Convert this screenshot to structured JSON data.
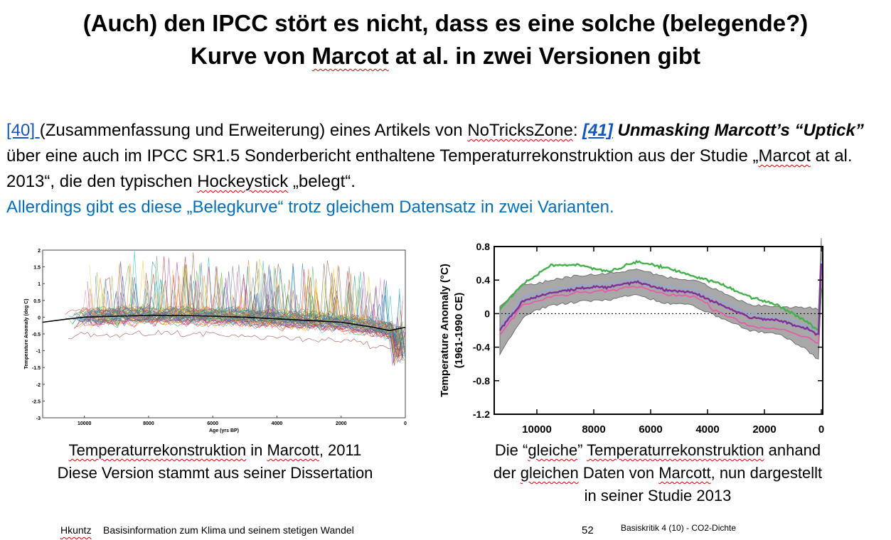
{
  "slide": {
    "title_pre": "(Auch) den IPCC stört es nicht, dass es eine solche (belegende?)",
    "title_line2_a": "Kurve von ",
    "title_line2_b": "Marcot",
    "title_line2_c": " at al. in zwei Versionen gibt",
    "para": {
      "ref40": "[40] ",
      "t1": "(Zusammenfassung und Erweiterung) eines Artikels von ",
      "notricks": "NoTricksZone",
      "t2": ": ",
      "ref41": "[41]",
      "t3": " Unmasking Marcott’s “Uptick”",
      "t4": " über eine auch im IPCC SR1.5 Sonderbericht enthaltene Temperaturrekonstruktion aus der Studie „",
      "marcot": "Marcot",
      "t5": " at al. 2013“, die den typischen ",
      "hockey": "Hockeystick",
      "t6": " „belegt“.",
      "blue_line": "Allerdings gibt es diese „Belegkurve“ trotz gleichem Datensatz in zwei Varianten."
    },
    "caption_left": {
      "l1a": "Temperaturrekonstruktion",
      "l1b": " in ",
      "l1c": "Marcott",
      "l1d": ", 2011",
      "l2": "Diese Version stammt aus seiner Dissertation"
    },
    "caption_right": {
      "l1a": "Die “",
      "l1b": "gleiche",
      "l1c": "” ",
      "l1d": "Temperaturrekonstruktion",
      "l1e": " anhand",
      "l2a": "der ",
      "l2b": "gleichen",
      "l2c": " Daten von  ",
      "l2d": "Marcott",
      "l2e": ", nun dargestellt",
      "l3": "in seiner Studie 2013"
    },
    "footer": {
      "author": "Hkuntz",
      "subtitle": "Basisinformation zum Klima und seinem stetigen Wandel",
      "page": "52",
      "section": "Basiskritik 4 (10) - CO2-Dichte"
    }
  },
  "chart_data": [
    {
      "type": "line",
      "title": "",
      "xlabel": "Age (yrs BP)",
      "ylabel": "Temperature Anomaly (deg C)",
      "xlim": [
        11300,
        0
      ],
      "ylim": [
        -3,
        2
      ],
      "xticks": [
        "10000",
        "8000",
        "6000",
        "4000",
        "2000",
        "0"
      ],
      "yticks": [
        "2",
        "1.5",
        "1",
        "0.5",
        "0",
        "-0.5",
        "-1",
        "-1.5",
        "-2",
        "-2.5",
        "-3"
      ],
      "series": [
        {
          "color": "#000000",
          "x": [
            11300,
            10500,
            10000,
            9000,
            8000,
            7000,
            6000,
            5000,
            4000,
            3000,
            2000,
            1000,
            500,
            0
          ],
          "y": [
            -0.15,
            -0.05,
            0.0,
            0.03,
            0.05,
            0.05,
            0.03,
            0.0,
            -0.05,
            -0.1,
            -0.15,
            -0.3,
            -0.4,
            -0.3
          ]
        }
      ]
    },
    {
      "type": "line",
      "title": "",
      "xlabel": "",
      "ylabel_1": "Temperature Anomaly (°C)",
      "ylabel_2": "(1961-1990 CE)",
      "xlim": [
        11500,
        -50
      ],
      "ylim": [
        -1.2,
        0.8
      ],
      "xticks": [
        "10000",
        "8000",
        "6000",
        "4000",
        "2000",
        "0"
      ],
      "yticks": [
        "0.8",
        "0.4",
        "0",
        "-0.4",
        "-0.8",
        "-1.2"
      ],
      "series": [
        {
          "color": "#43b04a",
          "x": [
            11300,
            10500,
            9500,
            8500,
            7500,
            6500,
            5500,
            4500,
            3500,
            2500,
            1500,
            500,
            100,
            0
          ],
          "y": [
            0.05,
            0.35,
            0.58,
            0.58,
            0.5,
            0.62,
            0.55,
            0.45,
            0.35,
            0.2,
            0.1,
            -0.1,
            -0.2,
            0.3
          ]
        },
        {
          "color": "#7f2f9c",
          "x": [
            11300,
            10500,
            9500,
            8500,
            7500,
            6500,
            5500,
            4500,
            3500,
            2500,
            1500,
            500,
            100,
            0
          ],
          "y": [
            -0.2,
            0.15,
            0.25,
            0.3,
            0.32,
            0.38,
            0.28,
            0.25,
            0.1,
            -0.05,
            -0.08,
            -0.18,
            -0.25,
            0.6
          ]
        }
      ]
    }
  ]
}
